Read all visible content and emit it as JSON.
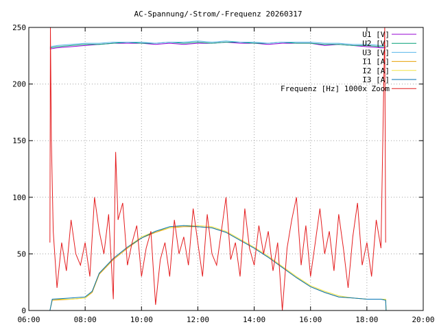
{
  "chart_data": {
    "type": "line",
    "title": "AC-Spannung/-Strom/-Frequenz 20260317",
    "xlabel": "",
    "ylabel": "",
    "xlim": [
      "06:00",
      "20:00"
    ],
    "ylim": [
      0,
      250
    ],
    "grid": true,
    "legend_position": "top-right",
    "x_ticks": [
      "06:00",
      "08:00",
      "10:00",
      "12:00",
      "14:00",
      "16:00",
      "18:00",
      "20:00"
    ],
    "y_ticks": [
      "0",
      "50",
      "100",
      "150",
      "200",
      "250"
    ],
    "series": [
      {
        "name": "U1 [V]",
        "color": "#9400d3",
        "x": [
          "06:45",
          "07:00",
          "07:30",
          "08:00",
          "08:30",
          "09:00",
          "09:30",
          "10:00",
          "10:30",
          "11:00",
          "11:30",
          "12:00",
          "12:30",
          "13:00",
          "13:30",
          "14:00",
          "14:30",
          "15:00",
          "15:30",
          "16:00",
          "16:30",
          "17:00",
          "17:30",
          "18:00",
          "18:30",
          "18:40"
        ],
        "values": [
          231,
          232,
          233,
          234,
          235,
          236,
          236,
          236,
          235,
          236,
          235,
          236,
          236,
          237,
          236,
          236,
          235,
          236,
          236,
          236,
          234,
          235,
          234,
          233,
          232,
          232
        ]
      },
      {
        "name": "U2 [V]",
        "color": "#009e73",
        "x": [
          "06:45",
          "07:00",
          "07:30",
          "08:00",
          "08:30",
          "09:00",
          "09:30",
          "10:00",
          "10:30",
          "11:00",
          "11:30",
          "12:00",
          "12:30",
          "13:00",
          "13:30",
          "14:00",
          "14:30",
          "15:00",
          "15:30",
          "16:00",
          "16:30",
          "17:00",
          "17:30",
          "18:00",
          "18:30",
          "18:40"
        ],
        "values": [
          232,
          233,
          234,
          235,
          235,
          236,
          237,
          236,
          236,
          237,
          236,
          237,
          236,
          237,
          237,
          236,
          236,
          237,
          236,
          236,
          235,
          235,
          234,
          234,
          233,
          233
        ]
      },
      {
        "name": "U3 [V]",
        "color": "#56b4e9",
        "x": [
          "06:45",
          "07:00",
          "07:30",
          "08:00",
          "08:30",
          "09:00",
          "09:30",
          "10:00",
          "10:30",
          "11:00",
          "11:30",
          "12:00",
          "12:30",
          "13:00",
          "13:30",
          "14:00",
          "14:30",
          "15:00",
          "15:30",
          "16:00",
          "16:30",
          "17:00",
          "17:30",
          "18:00",
          "18:30",
          "18:40"
        ],
        "values": [
          233,
          234,
          235,
          236,
          236,
          237,
          237,
          237,
          236,
          237,
          237,
          238,
          237,
          238,
          237,
          237,
          236,
          237,
          237,
          237,
          236,
          236,
          235,
          235,
          234,
          234
        ]
      },
      {
        "name": "I1 [A]",
        "color": "#e69f00",
        "x": [
          "06:45",
          "06:50",
          "07:30",
          "08:00",
          "08:15",
          "08:30",
          "09:00",
          "09:30",
          "10:00",
          "10:30",
          "11:00",
          "11:30",
          "12:00",
          "12:30",
          "13:00",
          "13:30",
          "14:00",
          "14:30",
          "15:00",
          "15:30",
          "16:00",
          "16:30",
          "17:00",
          "17:30",
          "18:00",
          "18:30",
          "18:40",
          "18:41"
        ],
        "values": [
          0,
          9,
          10,
          11,
          16,
          32,
          45,
          55,
          64,
          69,
          73,
          74,
          74,
          73,
          69,
          62,
          55,
          47,
          38,
          29,
          21,
          16,
          12,
          11,
          10,
          10,
          10,
          0
        ]
      },
      {
        "name": "I2 [A]",
        "color": "#f0e442",
        "x": [
          "06:45",
          "06:50",
          "07:30",
          "08:00",
          "08:15",
          "08:30",
          "09:00",
          "09:30",
          "10:00",
          "10:30",
          "11:00",
          "11:30",
          "12:00",
          "12:30",
          "13:00",
          "13:30",
          "14:00",
          "14:30",
          "15:00",
          "15:30",
          "16:00",
          "16:30",
          "17:00",
          "17:30",
          "18:00",
          "18:30",
          "18:40",
          "18:41"
        ],
        "values": [
          0,
          10,
          10,
          11,
          17,
          33,
          46,
          56,
          65,
          70,
          73,
          75,
          75,
          74,
          70,
          63,
          56,
          48,
          39,
          30,
          22,
          17,
          13,
          11,
          10,
          10,
          10,
          0
        ]
      },
      {
        "name": "I3 [A]",
        "color": "#0072b2",
        "x": [
          "06:45",
          "06:50",
          "07:30",
          "08:00",
          "08:15",
          "08:30",
          "09:00",
          "09:30",
          "10:00",
          "10:30",
          "11:00",
          "11:30",
          "12:00",
          "12:30",
          "13:00",
          "13:30",
          "14:00",
          "14:30",
          "15:00",
          "15:30",
          "16:00",
          "16:30",
          "17:00",
          "17:30",
          "18:00",
          "18:30",
          "18:40",
          "18:41"
        ],
        "values": [
          0,
          10,
          11,
          12,
          17,
          33,
          46,
          56,
          64,
          70,
          74,
          75,
          74,
          73,
          69,
          62,
          55,
          47,
          38,
          29,
          21,
          16,
          12,
          11,
          10,
          10,
          9,
          0
        ]
      },
      {
        "name": "Frequenz [Hz] 1000x Zoom",
        "color": "#e41a1c",
        "x": [
          "06:45",
          "06:46",
          "06:48",
          "06:52",
          "07:00",
          "07:10",
          "07:20",
          "07:30",
          "07:40",
          "07:50",
          "08:00",
          "08:10",
          "08:20",
          "08:30",
          "08:40",
          "08:50",
          "09:00",
          "09:05",
          "09:10",
          "09:20",
          "09:30",
          "09:40",
          "09:50",
          "10:00",
          "10:10",
          "10:20",
          "10:30",
          "10:40",
          "10:50",
          "11:00",
          "11:10",
          "11:20",
          "11:30",
          "11:40",
          "11:50",
          "12:00",
          "12:10",
          "12:20",
          "12:30",
          "12:40",
          "12:50",
          "13:00",
          "13:10",
          "13:20",
          "13:30",
          "13:40",
          "13:50",
          "14:00",
          "14:10",
          "14:20",
          "14:30",
          "14:40",
          "14:50",
          "15:00",
          "15:10",
          "15:20",
          "15:30",
          "15:40",
          "15:50",
          "16:00",
          "16:10",
          "16:20",
          "16:30",
          "16:40",
          "16:50",
          "17:00",
          "17:10",
          "17:20",
          "17:30",
          "17:40",
          "17:50",
          "18:00",
          "18:10",
          "18:20",
          "18:30",
          "18:38",
          "18:40"
        ],
        "values": [
          60,
          250,
          150,
          70,
          20,
          60,
          35,
          80,
          50,
          40,
          60,
          30,
          100,
          70,
          50,
          85,
          10,
          140,
          80,
          95,
          40,
          60,
          75,
          30,
          55,
          70,
          5,
          45,
          60,
          30,
          80,
          50,
          65,
          40,
          90,
          60,
          30,
          85,
          50,
          40,
          70,
          100,
          45,
          60,
          30,
          90,
          55,
          40,
          75,
          50,
          70,
          35,
          60,
          0,
          55,
          80,
          100,
          40,
          75,
          30,
          60,
          90,
          50,
          70,
          35,
          85,
          55,
          20,
          65,
          95,
          40,
          60,
          30,
          80,
          55,
          250,
          60
        ]
      }
    ]
  }
}
